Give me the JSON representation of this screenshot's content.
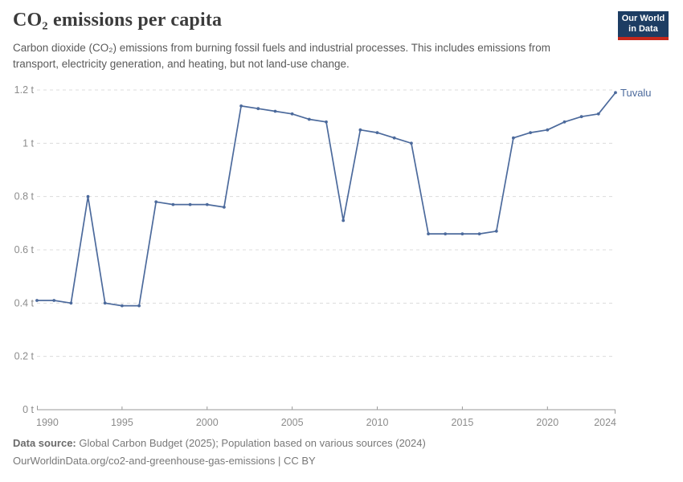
{
  "header": {
    "title": "CO₂ emissions per capita",
    "subtitle": "Carbon dioxide (CO₂) emissions from burning fossil fuels and industrial processes. This includes emissions from transport, electricity generation, and heating, but not land-use change.",
    "logo": {
      "line1": "Our World",
      "line2": "in Data",
      "bg_color": "#1d3d63",
      "accent_color": "#c5281c"
    }
  },
  "chart_data": {
    "type": "line",
    "title": "CO₂ emissions per capita",
    "entity_label": "Tuvalu",
    "x": [
      1990,
      1991,
      1992,
      1993,
      1994,
      1995,
      1996,
      1997,
      1998,
      1999,
      2000,
      2001,
      2002,
      2003,
      2004,
      2005,
      2006,
      2007,
      2008,
      2009,
      2010,
      2011,
      2012,
      2013,
      2014,
      2015,
      2016,
      2017,
      2018,
      2019,
      2020,
      2021,
      2022,
      2023,
      2024
    ],
    "series": [
      {
        "name": "Tuvalu",
        "color": "#4c6a9c",
        "values": [
          0.41,
          0.41,
          0.4,
          0.8,
          0.4,
          0.39,
          0.39,
          0.78,
          0.77,
          0.77,
          0.77,
          0.76,
          1.14,
          1.13,
          1.12,
          1.11,
          1.09,
          1.08,
          0.71,
          1.05,
          1.04,
          1.02,
          1.0,
          0.66,
          0.66,
          0.66,
          0.66,
          0.67,
          1.02,
          1.04,
          1.05,
          1.08,
          1.1,
          1.11,
          1.19
        ]
      }
    ],
    "xlim": [
      1990,
      2024
    ],
    "ylim": [
      0,
      1.2
    ],
    "xticks": [
      1990,
      1995,
      2000,
      2005,
      2010,
      2015,
      2020,
      2024
    ],
    "xtick_labels": [
      "1990",
      "1995",
      "2000",
      "2005",
      "2010",
      "2015",
      "2020",
      "2024"
    ],
    "ytick_values": [
      0,
      0.2,
      0.4,
      0.6,
      0.8,
      1,
      1.2
    ],
    "ytick_labels": [
      "0 t",
      "0.2 t",
      "0.4 t",
      "0.6 t",
      "0.8 t",
      "1 t",
      "1.2 t"
    ],
    "grid": "horizontal-dashed",
    "legend_position": "line-end-label"
  },
  "footer": {
    "source_label": "Data source:",
    "source_text": "Global Carbon Budget (2025); Population based on various sources (2024)",
    "citation": "OurWorldinData.org/co2-and-greenhouse-gas-emissions | CC BY"
  },
  "colors": {
    "series": "#4c6a9c",
    "grid": "#dcdcdc",
    "axis": "#9a9a9a",
    "tick_text": "#8c8c8c",
    "title_text": "#3b3b3b",
    "subtitle_text": "#5a5a5a",
    "footer_text": "#787878"
  }
}
